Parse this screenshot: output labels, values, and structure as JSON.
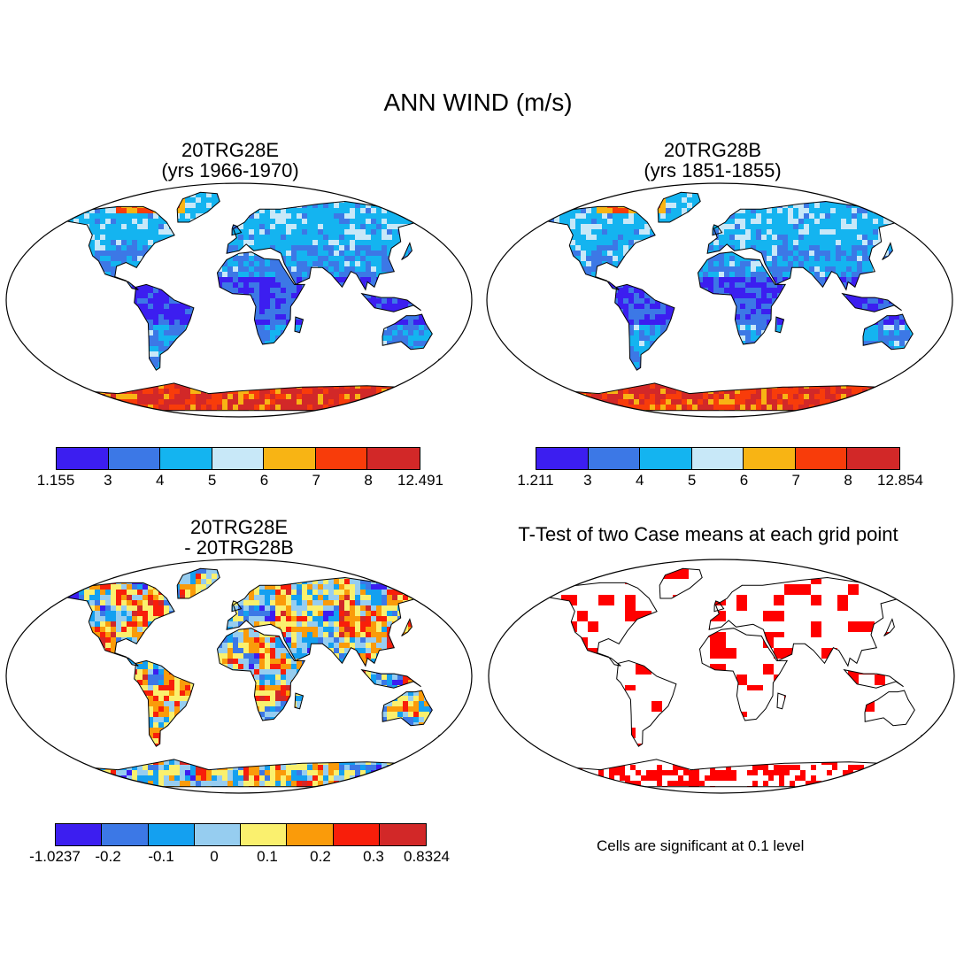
{
  "figure": {
    "title": "ANN WIND (m/s)"
  },
  "panels": [
    {
      "id": "case1",
      "title_line1": "20TRG28E",
      "title_line2": "(yrs 1966-1970)",
      "kind": "field",
      "colorbar": {
        "colors": [
          "#3c1ef0",
          "#3c78e6",
          "#14b4f0",
          "#c8e8f8",
          "#f8b414",
          "#f83c0a",
          "#d22828"
        ],
        "labels": [
          "1.155",
          "3",
          "4",
          "5",
          "6",
          "7",
          "8",
          "12.491"
        ]
      }
    },
    {
      "id": "case2",
      "title_line1": "20TRG28B",
      "title_line2": "(yrs 1851-1855)",
      "kind": "field",
      "colorbar": {
        "colors": [
          "#3c1ef0",
          "#3c78e6",
          "#14b4f0",
          "#c8e8f8",
          "#f8b414",
          "#f83c0a",
          "#d22828"
        ],
        "labels": [
          "1.211",
          "3",
          "4",
          "5",
          "6",
          "7",
          "8",
          "12.854"
        ]
      }
    },
    {
      "id": "diff",
      "title_line1": "20TRG28E",
      "title_line2": "- 20TRG28B",
      "kind": "difference",
      "colorbar": {
        "colors": [
          "#3c1ef0",
          "#3c78e6",
          "#14a0f0",
          "#96cdf0",
          "#faf06e",
          "#fa9b0a",
          "#f81e0a",
          "#d22828"
        ],
        "labels": [
          "-1.0237",
          "-0.2",
          "-0.1",
          "0",
          "0.1",
          "0.2",
          "0.3",
          "0.8324"
        ]
      }
    },
    {
      "id": "ttest",
      "title_line1": "T-Test of two Case means at each grid point",
      "kind": "significance",
      "significance_color": "#ff0000",
      "note": "Cells are significant at 0.1 level"
    }
  ]
}
